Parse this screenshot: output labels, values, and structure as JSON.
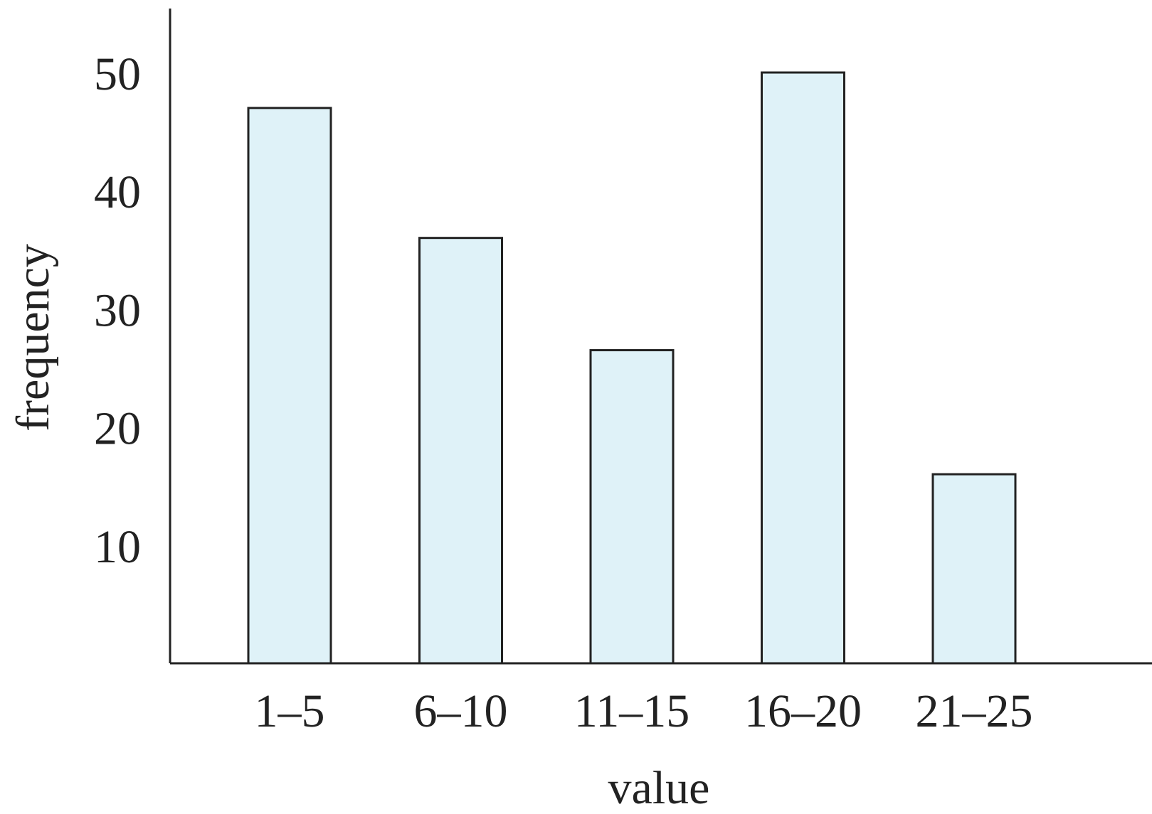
{
  "chart_data": {
    "type": "bar",
    "title": "",
    "xlabel": "value",
    "ylabel": "frequency",
    "categories": [
      "1–5",
      "6–10",
      "11–15",
      "16–20",
      "21–25"
    ],
    "values": [
      47,
      36,
      26.5,
      50,
      16
    ],
    "ylim": [
      0,
      55
    ],
    "yticks": [
      10,
      20,
      30,
      40,
      50
    ],
    "grid": false,
    "legend": "none",
    "colors": {
      "bar_fill": "#dff2f8",
      "bar_stroke": "#222222",
      "axis": "#222222"
    }
  }
}
